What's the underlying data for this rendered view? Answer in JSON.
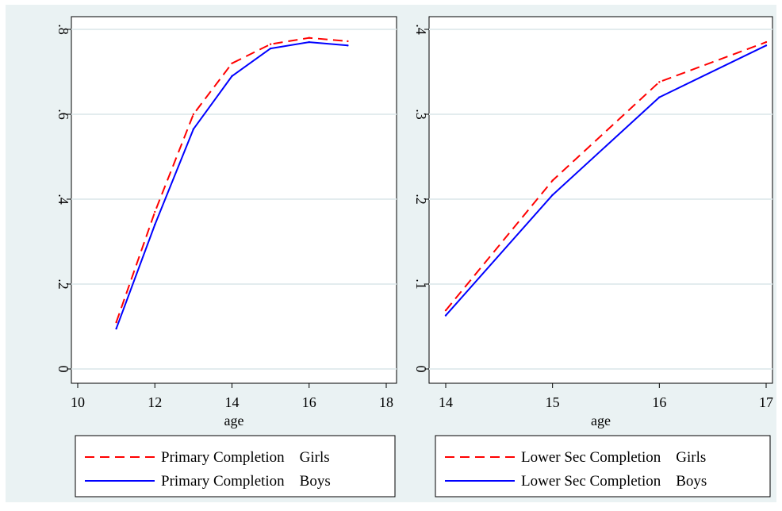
{
  "chart_data": [
    {
      "type": "line",
      "xlabel": "age",
      "ylabel": "",
      "xlim": [
        10,
        18
      ],
      "ylim": [
        0,
        0.8
      ],
      "x_ticks": [
        10,
        12,
        14,
        16,
        18
      ],
      "x_tick_labels": [
        "10",
        "12",
        "14",
        "16",
        "18"
      ],
      "y_ticks": [
        0,
        0.2,
        0.4,
        0.6,
        0.8
      ],
      "y_tick_labels": [
        "0",
        ".2",
        ".4",
        ".6",
        ".8"
      ],
      "grid": true,
      "legend_position": "bottom",
      "x": [
        11,
        12,
        13,
        14,
        15,
        16,
        17
      ],
      "series": [
        {
          "name": "Primary Completion    Girls",
          "color": "#ff0000",
          "dashed": true,
          "values": [
            0.11,
            0.37,
            0.6,
            0.72,
            0.765,
            0.78,
            0.772
          ]
        },
        {
          "name": "Primary Completion    Boys",
          "color": "#0000ff",
          "dashed": false,
          "values": [
            0.095,
            0.34,
            0.565,
            0.69,
            0.755,
            0.77,
            0.762
          ]
        }
      ]
    },
    {
      "type": "line",
      "xlabel": "age",
      "ylabel": "",
      "xlim": [
        14,
        17
      ],
      "ylim": [
        0,
        0.4
      ],
      "x_ticks": [
        14,
        15,
        16,
        17
      ],
      "x_tick_labels": [
        "14",
        "15",
        "16",
        "17"
      ],
      "y_ticks": [
        0,
        0.1,
        0.2,
        0.3,
        0.4
      ],
      "y_tick_labels": [
        "0",
        ".1",
        ".2",
        ".3",
        ".4"
      ],
      "grid": true,
      "legend_position": "bottom",
      "x": [
        14,
        15,
        16,
        17
      ],
      "series": [
        {
          "name": "Lower Sec Completion    Girls",
          "color": "#ff0000",
          "dashed": true,
          "values": [
            0.069,
            0.222,
            0.338,
            0.385
          ]
        },
        {
          "name": "Lower Sec Completion    Boys",
          "color": "#0000ff",
          "dashed": false,
          "values": [
            0.063,
            0.205,
            0.32,
            0.381
          ]
        }
      ]
    }
  ]
}
